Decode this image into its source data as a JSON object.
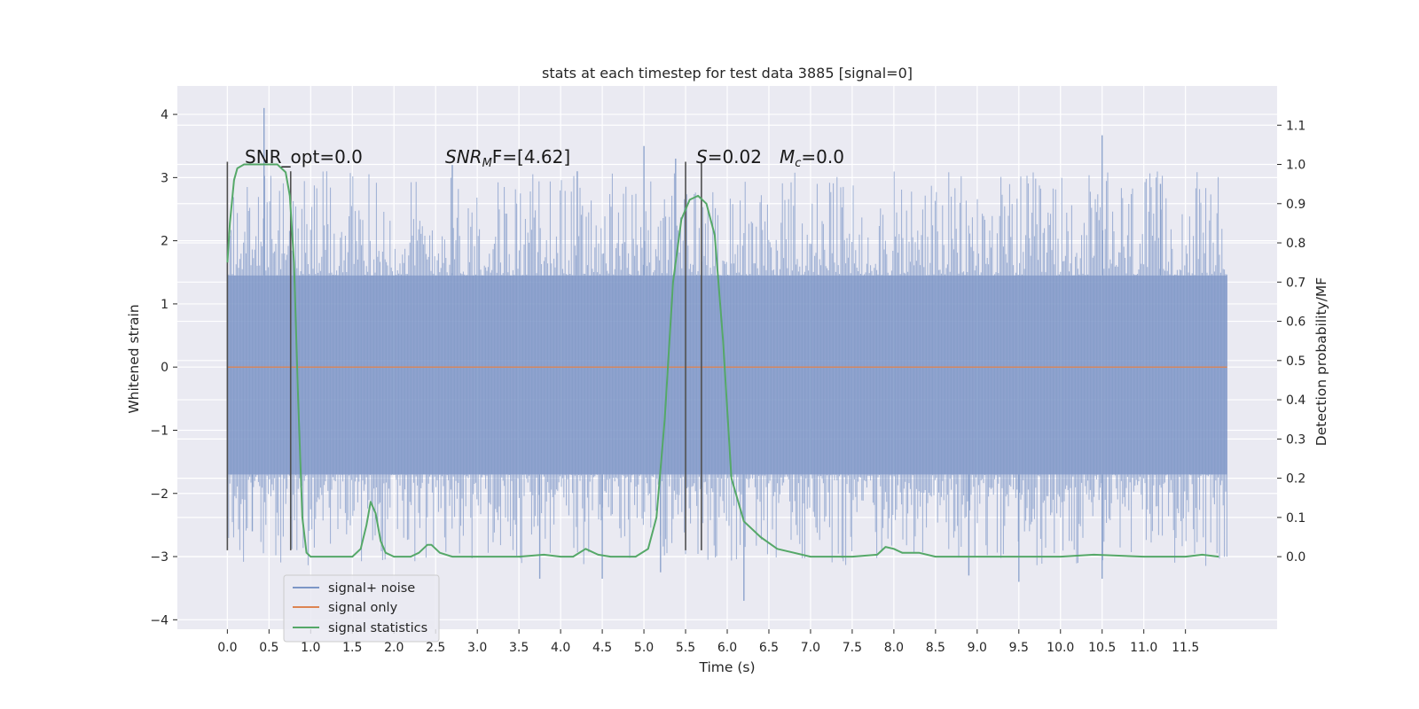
{
  "chart_data": {
    "type": "line",
    "title": "stats at each timestep for test data 3885 [signal=0]",
    "xlabel": "Time (s)",
    "ylabel_left": "Whitened strain",
    "ylabel_right": "Detection probability/MF",
    "xlim": [
      -0.6,
      12.6
    ],
    "ylim_left": [
      -4.15,
      4.45
    ],
    "ylim_right": [
      -0.185,
      1.2
    ],
    "x_ticks": [
      "0.0",
      "0.5",
      "1.0",
      "1.5",
      "2.0",
      "2.5",
      "3.0",
      "3.5",
      "4.0",
      "4.5",
      "5.0",
      "5.5",
      "6.0",
      "6.5",
      "7.0",
      "7.5",
      "8.0",
      "8.5",
      "9.0",
      "9.5",
      "10.0",
      "10.5",
      "11.0",
      "11.5"
    ],
    "y_ticks_left": [
      "4",
      "3",
      "2",
      "1",
      "0",
      "−1",
      "−2",
      "−3",
      "−4"
    ],
    "y_ticks_right": [
      "1.1",
      "1.0",
      "0.9",
      "0.8",
      "0.7",
      "0.6",
      "0.5",
      "0.4",
      "0.3",
      "0.2",
      "0.1",
      "0.0"
    ],
    "grid": true,
    "legend_placement": "lower-left",
    "series": [
      {
        "name": "signal+ noise",
        "color": "#7d96c6",
        "axis": "left",
        "x_range": [
          0.0,
          12.0
        ],
        "band": [
          -1.7,
          1.45
        ],
        "peaks": [
          {
            "x": 0.44,
            "y": 4.1
          },
          {
            "x": 5.0,
            "y": 3.5
          },
          {
            "x": 5.38,
            "y": 3.3
          },
          {
            "x": 2.7,
            "y": 3.2
          },
          {
            "x": 10.5,
            "y": 3.67
          },
          {
            "x": 4.2,
            "y": 3.1
          },
          {
            "x": 11.2,
            "y": 2.9
          },
          {
            "x": 6.2,
            "y": -3.7
          },
          {
            "x": 3.75,
            "y": -3.35
          },
          {
            "x": 4.5,
            "y": -3.35
          },
          {
            "x": 10.5,
            "y": -3.35
          },
          {
            "x": 9.5,
            "y": -3.4
          },
          {
            "x": 5.2,
            "y": -3.25
          },
          {
            "x": 8.9,
            "y": -3.3
          },
          {
            "x": 0.3,
            "y": -2.6
          }
        ]
      },
      {
        "name": "signal only",
        "color": "#dd8452",
        "axis": "left",
        "x": [
          0.0,
          12.0
        ],
        "y": [
          0.0,
          0.0
        ]
      },
      {
        "name": "signal statistics",
        "color": "#55a868",
        "axis": "right",
        "x": [
          0.0,
          0.03,
          0.08,
          0.12,
          0.2,
          0.3,
          0.45,
          0.6,
          0.7,
          0.75,
          0.8,
          0.85,
          0.9,
          0.95,
          1.0,
          1.2,
          1.5,
          1.6,
          1.67,
          1.72,
          1.78,
          1.84,
          1.9,
          2.0,
          2.2,
          2.3,
          2.4,
          2.45,
          2.55,
          2.7,
          3.0,
          3.5,
          3.8,
          4.0,
          4.15,
          4.3,
          4.45,
          4.6,
          4.9,
          5.05,
          5.15,
          5.25,
          5.35,
          5.45,
          5.55,
          5.65,
          5.75,
          5.85,
          5.95,
          6.05,
          6.2,
          6.4,
          6.6,
          7.0,
          7.5,
          7.8,
          7.9,
          8.0,
          8.1,
          8.3,
          8.5,
          9.0,
          10.0,
          10.4,
          11.0,
          11.5,
          11.7,
          11.9
        ],
        "y": [
          0.75,
          0.85,
          0.96,
          0.99,
          1.0,
          1.0,
          1.0,
          1.0,
          0.98,
          0.92,
          0.75,
          0.4,
          0.1,
          0.01,
          0.0,
          0.0,
          0.0,
          0.02,
          0.08,
          0.14,
          0.11,
          0.04,
          0.01,
          0.0,
          0.0,
          0.01,
          0.03,
          0.03,
          0.01,
          0.0,
          0.0,
          0.0,
          0.005,
          0.0,
          0.0,
          0.02,
          0.005,
          0.0,
          0.0,
          0.02,
          0.1,
          0.35,
          0.7,
          0.86,
          0.91,
          0.92,
          0.9,
          0.82,
          0.55,
          0.2,
          0.09,
          0.05,
          0.02,
          0.0,
          0.0,
          0.005,
          0.025,
          0.02,
          0.01,
          0.01,
          0.0,
          0.0,
          0.0,
          0.005,
          0.0,
          0.0,
          0.005,
          0.0
        ]
      }
    ],
    "vertical_lines": {
      "color": "#4f4f4f",
      "x": [
        0.0,
        0.76,
        5.5,
        5.69
      ],
      "y_bottom": -2.9,
      "y_top": [
        3.25,
        3.1,
        3.25,
        3.25
      ]
    },
    "annotations": [
      {
        "id": "snr-opt",
        "text": "SNR_opt=0.0"
      },
      {
        "id": "snr-mf",
        "main": "SNR",
        "sub": "M",
        "rest": "F=[4.62]"
      },
      {
        "id": "s-stat",
        "main": "S",
        "rest": "=0.02"
      },
      {
        "id": "mc",
        "main": "M",
        "sub": "c",
        "rest": "=0.0"
      }
    ]
  }
}
